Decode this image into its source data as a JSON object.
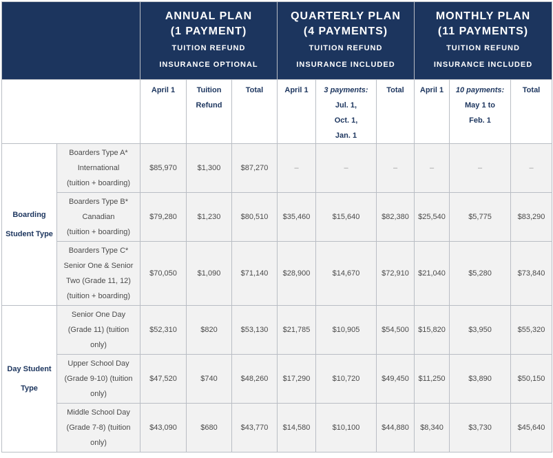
{
  "plans": {
    "annual": {
      "title1": "ANNUAL PLAN",
      "title2": "(1 PAYMENT)",
      "sub1": "TUITION REFUND",
      "sub2": "INSURANCE OPTIONAL"
    },
    "quarterly": {
      "title1": "QUARTERLY PLAN",
      "title2": "(4 PAYMENTS)",
      "sub1": "TUITION REFUND",
      "sub2": "INSURANCE INCLUDED"
    },
    "monthly": {
      "title1": "MONTHLY PLAN",
      "title2": "(11 PAYMENTS)",
      "sub1": "TUITION REFUND",
      "sub2": "INSURANCE INCLUDED"
    }
  },
  "columns": {
    "annual_april": "April 1",
    "annual_refund1": "Tuition",
    "annual_refund2": "Refund",
    "annual_total": "Total",
    "quarterly_april": "April 1",
    "quarterly_pay_title": "3 payments:",
    "quarterly_pay_l1": "Jul. 1,",
    "quarterly_pay_l2": "Oct. 1,",
    "quarterly_pay_l3": "Jan. 1",
    "quarterly_total": "Total",
    "monthly_april": "April 1",
    "monthly_pay_title": "10 payments:",
    "monthly_pay_l1": "May 1 to",
    "monthly_pay_l2": "Feb. 1",
    "monthly_total": "Total"
  },
  "groups": {
    "boarding1": "Boarding",
    "boarding2": "Student Type",
    "day1": "Day Student",
    "day2": "Type"
  },
  "rows": [
    {
      "l1": "Boarders Type A*",
      "l2": "International",
      "l3": "(tuition + boarding)",
      "l4": "",
      "values": [
        "$85,970",
        "$1,300",
        "$87,270",
        "–",
        "–",
        "–",
        "–",
        "–",
        "–"
      ]
    },
    {
      "l1": "Boarders Type B*",
      "l2": "Canadian",
      "l3": "(tuition + boarding)",
      "l4": "",
      "values": [
        "$79,280",
        "$1,230",
        "$80,510",
        "$35,460",
        "$15,640",
        "$82,380",
        "$25,540",
        "$5,775",
        "$83,290"
      ]
    },
    {
      "l1": "Boarders Type C*",
      "l2": "Senior One & Senior",
      "l3": "Two (Grade 11, 12)",
      "l4": "(tuition + boarding)",
      "values": [
        "$70,050",
        "$1,090",
        "$71,140",
        "$28,900",
        "$14,670",
        "$72,910",
        "$21,040",
        "$5,280",
        "$73,840"
      ]
    },
    {
      "l1": "Senior One Day",
      "l2": "(Grade 11) (tuition",
      "l3": "only)",
      "l4": "",
      "values": [
        "$52,310",
        "$820",
        "$53,130",
        "$21,785",
        "$10,905",
        "$54,500",
        "$15,820",
        "$3,950",
        "$55,320"
      ]
    },
    {
      "l1": "Upper School Day",
      "l2": "(Grade 9-10) (tuition",
      "l3": "only)",
      "l4": "",
      "values": [
        "$47,520",
        "$740",
        "$48,260",
        "$17,290",
        "$10,720",
        "$49,450",
        "$11,250",
        "$3,890",
        "$50,150"
      ]
    },
    {
      "l1": "Middle School Day",
      "l2": "(Grade 7-8) (tuition",
      "l3": "only)",
      "l4": "",
      "values": [
        "$43,090",
        "$680",
        "$43,770",
        "$14,580",
        "$10,100",
        "$44,880",
        "$8,340",
        "$3,730",
        "$45,640"
      ]
    }
  ],
  "colors": {
    "header_bg": "#1c355e",
    "cell_bg": "#f2f2f2",
    "accent_text": "#1c355e",
    "body_text": "#4a4a4a"
  }
}
